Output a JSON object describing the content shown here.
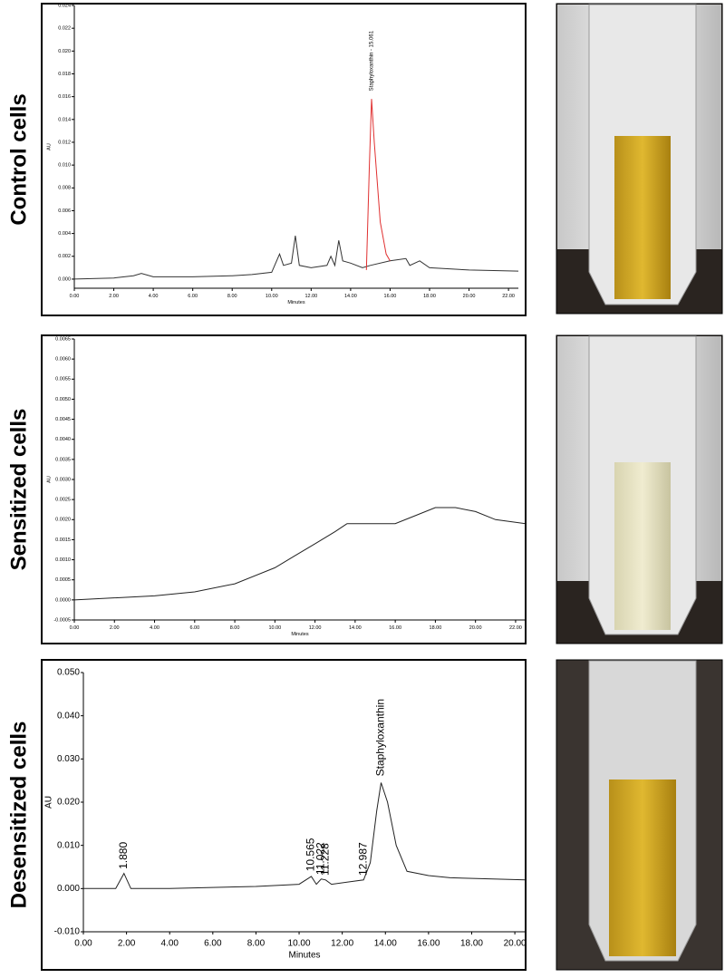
{
  "chart_data": [
    {
      "type": "line",
      "row_label": "Control cells",
      "xlabel": "Minutes",
      "ylabel": "AU",
      "xlim": [
        0,
        22.5
      ],
      "ylim": [
        -0.0008,
        0.024
      ],
      "xticks": [
        {
          "value": 0,
          "label": "0.00"
        },
        {
          "value": 2,
          "label": "2.00"
        },
        {
          "value": 4,
          "label": "4.00"
        },
        {
          "value": 6,
          "label": "6.00"
        },
        {
          "value": 8,
          "label": "8.00"
        },
        {
          "value": 10,
          "label": "10.00"
        },
        {
          "value": 12,
          "label": "12.00"
        },
        {
          "value": 14,
          "label": "14.00"
        },
        {
          "value": 16,
          "label": "16.00"
        },
        {
          "value": 18,
          "label": "18.00"
        },
        {
          "value": 20,
          "label": "20.00"
        },
        {
          "value": 22,
          "label": "22.00"
        }
      ],
      "yticks": [
        {
          "value": 0,
          "label": "0.000"
        },
        {
          "value": 0.002,
          "label": "0.002"
        },
        {
          "value": 0.004,
          "label": "0.004"
        },
        {
          "value": 0.006,
          "label": "0.006"
        },
        {
          "value": 0.008,
          "label": "0.008"
        },
        {
          "value": 0.01,
          "label": "0.010"
        },
        {
          "value": 0.012,
          "label": "0.012"
        },
        {
          "value": 0.014,
          "label": "0.014"
        },
        {
          "value": 0.016,
          "label": "0.016"
        },
        {
          "value": 0.018,
          "label": "0.018"
        },
        {
          "value": 0.02,
          "label": "0.020"
        },
        {
          "value": 0.022,
          "label": "0.022"
        },
        {
          "value": 0.024,
          "label": "0.024"
        }
      ],
      "series": [
        {
          "color": "#333333",
          "x": [
            0,
            2,
            3,
            3.4,
            4,
            6,
            8,
            9,
            10,
            10.4,
            10.6,
            11,
            11.2,
            11.4,
            12,
            12.8,
            13,
            13.2,
            13.4,
            13.6,
            14,
            14.6,
            15,
            16,
            16.8,
            17,
            17.5,
            18,
            20,
            22.5
          ],
          "values": [
            0,
            0.0001,
            0.0003,
            0.0005,
            0.0002,
            0.0002,
            0.0003,
            0.0004,
            0.0006,
            0.0022,
            0.0012,
            0.0014,
            0.0038,
            0.0012,
            0.001,
            0.0012,
            0.002,
            0.0012,
            0.0034,
            0.0016,
            0.0014,
            0.001,
            0.0012,
            0.0016,
            0.0018,
            0.0012,
            0.0016,
            0.001,
            0.0008,
            0.0007
          ]
        },
        {
          "color": "#e03030",
          "x": [
            14.8,
            14.95,
            15.06,
            15.2,
            15.5,
            15.8,
            16.0
          ],
          "values": [
            0.0008,
            0.01,
            0.0158,
            0.012,
            0.005,
            0.0022,
            0.0016
          ]
        }
      ],
      "annotations": [
        {
          "text": "Staphyloxanthin - 15.061",
          "x": 15.06,
          "y": 0.0165
        }
      ]
    },
    {
      "type": "line",
      "row_label": "Sensitized cells",
      "xlabel": "Minutes",
      "ylabel": "AU",
      "xlim": [
        0,
        22.5
      ],
      "ylim": [
        -0.0005,
        0.0065
      ],
      "xticks": [
        {
          "value": 0,
          "label": "0.00"
        },
        {
          "value": 2,
          "label": "2.00"
        },
        {
          "value": 4,
          "label": "4.00"
        },
        {
          "value": 6,
          "label": "6.00"
        },
        {
          "value": 8,
          "label": "8.00"
        },
        {
          "value": 10,
          "label": "10.00"
        },
        {
          "value": 12,
          "label": "12.00"
        },
        {
          "value": 14,
          "label": "14.00"
        },
        {
          "value": 16,
          "label": "16.00"
        },
        {
          "value": 18,
          "label": "18.00"
        },
        {
          "value": 20,
          "label": "20.00"
        },
        {
          "value": 22,
          "label": "22.00"
        }
      ],
      "yticks": [
        {
          "value": -0.0005,
          "label": "-0.0005"
        },
        {
          "value": 0,
          "label": "0.0000"
        },
        {
          "value": 0.0005,
          "label": "0.0005"
        },
        {
          "value": 0.001,
          "label": "0.0010"
        },
        {
          "value": 0.0015,
          "label": "0.0015"
        },
        {
          "value": 0.002,
          "label": "0.0020"
        },
        {
          "value": 0.0025,
          "label": "0.0025"
        },
        {
          "value": 0.003,
          "label": "0.0030"
        },
        {
          "value": 0.0035,
          "label": "0.0035"
        },
        {
          "value": 0.004,
          "label": "0.0040"
        },
        {
          "value": 0.0045,
          "label": "0.0045"
        },
        {
          "value": 0.005,
          "label": "0.0050"
        },
        {
          "value": 0.0055,
          "label": "0.0055"
        },
        {
          "value": 0.006,
          "label": "0.0060"
        },
        {
          "value": 0.0065,
          "label": "0.0065"
        }
      ],
      "series": [
        {
          "color": "#222222",
          "x": [
            0,
            4,
            6,
            8,
            10,
            11,
            12,
            13,
            13.6,
            14,
            15,
            16,
            17,
            18,
            19,
            20,
            21,
            22.5
          ],
          "values": [
            0,
            0.0001,
            0.0002,
            0.0004,
            0.0008,
            0.0011,
            0.0014,
            0.0017,
            0.0019,
            0.0019,
            0.0019,
            0.0019,
            0.0021,
            0.0023,
            0.0023,
            0.0022,
            0.002,
            0.0019
          ]
        }
      ]
    },
    {
      "type": "line",
      "row_label": "Desensitized cells",
      "xlabel": "Minutes",
      "ylabel": "AU",
      "xlim": [
        0,
        20.5
      ],
      "ylim": [
        -0.01,
        0.05
      ],
      "xticks": [
        {
          "value": 0,
          "label": "0.00"
        },
        {
          "value": 2,
          "label": "2.00"
        },
        {
          "value": 4,
          "label": "4.00"
        },
        {
          "value": 6,
          "label": "6.00"
        },
        {
          "value": 8,
          "label": "8.00"
        },
        {
          "value": 10,
          "label": "10.00"
        },
        {
          "value": 12,
          "label": "12.00"
        },
        {
          "value": 14,
          "label": "14.00"
        },
        {
          "value": 16,
          "label": "16.00"
        },
        {
          "value": 18,
          "label": "18.00"
        },
        {
          "value": 20,
          "label": "20.00"
        }
      ],
      "yticks": [
        {
          "value": -0.01,
          "label": "-0.010"
        },
        {
          "value": 0,
          "label": "0.000"
        },
        {
          "value": 0.01,
          "label": "0.010"
        },
        {
          "value": 0.02,
          "label": "0.020"
        },
        {
          "value": 0.03,
          "label": "0.030"
        },
        {
          "value": 0.04,
          "label": "0.040"
        },
        {
          "value": 0.05,
          "label": "0.050"
        }
      ],
      "series": [
        {
          "color": "#222222",
          "x": [
            0,
            1.5,
            1.88,
            2.2,
            4,
            8,
            10,
            10.565,
            10.8,
            11.022,
            11.228,
            11.5,
            12.987,
            13.3,
            13.6,
            13.8,
            14.1,
            14.5,
            15,
            16,
            17,
            20.5
          ],
          "values": [
            0,
            0,
            0.0035,
            0,
            0,
            0.0005,
            0.001,
            0.0028,
            0.001,
            0.0022,
            0.002,
            0.001,
            0.002,
            0.006,
            0.018,
            0.0245,
            0.02,
            0.01,
            0.004,
            0.003,
            0.0025,
            0.002
          ]
        }
      ],
      "annotations": [
        {
          "text": "1.880",
          "x": 1.88,
          "y": 0.0045
        },
        {
          "text": "10.565",
          "x": 10.565,
          "y": 0.004
        },
        {
          "text": "11.022",
          "x": 11.022,
          "y": 0.0032
        },
        {
          "text": "11.228",
          "x": 11.228,
          "y": 0.003
        },
        {
          "text": "12.987",
          "x": 12.987,
          "y": 0.003
        },
        {
          "text": "Staphyloxanthin",
          "x": 13.8,
          "y": 0.026
        }
      ]
    }
  ]
}
